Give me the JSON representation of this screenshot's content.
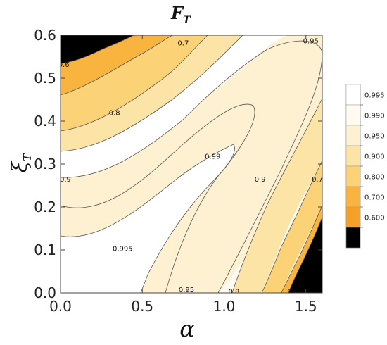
{
  "chart_data": {
    "type": "contour",
    "title": "F",
    "title_subscript": "T",
    "xlabel": "α",
    "ylabel": "ξ",
    "ylabel_subscript": "T",
    "xlim": [
      0,
      1.6
    ],
    "ylim": [
      0,
      0.6
    ],
    "x_ticks": [
      0.0,
      0.5,
      1.0,
      1.5
    ],
    "x_tick_labels": [
      "0.0",
      "0.5",
      "1.0",
      "1.5"
    ],
    "y_ticks": [
      0.0,
      0.1,
      0.2,
      0.3,
      0.4,
      0.5,
      0.6
    ],
    "y_tick_labels": [
      "0.0",
      "0.1",
      "0.2",
      "0.3",
      "0.4",
      "0.5",
      "0.6"
    ],
    "contour_levels": [
      0.6,
      0.7,
      0.8,
      0.9,
      0.95,
      0.99,
      0.995
    ],
    "legend": {
      "placement": "right",
      "entries": [
        {
          "label": "0.995",
          "color": "#ffffff"
        },
        {
          "label": "0.990",
          "color": "#fffbf0"
        },
        {
          "label": "0.950",
          "color": "#fdf1d2"
        },
        {
          "label": "0.900",
          "color": "#fce4a7"
        },
        {
          "label": "0.800",
          "color": "#fbd376"
        },
        {
          "label": "0.700",
          "color": "#f9b440"
        },
        {
          "label": "0.600",
          "color": "#f5a127"
        },
        {
          "label": "",
          "color": "#000000"
        }
      ]
    },
    "contour_labels": [
      {
        "text": "0.6",
        "x": 0.02,
        "y": 0.532
      },
      {
        "text": "0.7",
        "x": 0.75,
        "y": 0.582
      },
      {
        "text": "0.95",
        "x": 1.53,
        "y": 0.587
      },
      {
        "text": "0.8",
        "x": 0.33,
        "y": 0.42
      },
      {
        "text": "0.99",
        "x": 0.93,
        "y": 0.318
      },
      {
        "text": "0.9",
        "x": 0.03,
        "y": 0.265
      },
      {
        "text": "0.9",
        "x": 1.22,
        "y": 0.265
      },
      {
        "text": "0.7",
        "x": 1.57,
        "y": 0.265
      },
      {
        "text": "0.995",
        "x": 0.38,
        "y": 0.103
      },
      {
        "text": "0.95",
        "x": 0.77,
        "y": 0.007
      },
      {
        "text": "0.8",
        "x": 1.06,
        "y": 0.003
      },
      {
        "text": "0.6",
        "x": 1.42,
        "y": 0.003
      }
    ]
  }
}
